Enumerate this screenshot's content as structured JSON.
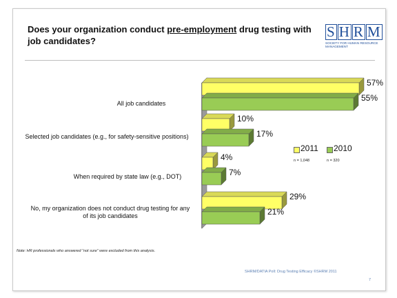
{
  "header": {
    "title_pre": "Does your organization conduct ",
    "title_u": "pre-employment",
    "title_post": " drug testing with job candidates?",
    "logo_text": "SHRM",
    "logo_sub": "Society for Human Resource Management"
  },
  "colors": {
    "series_2011": "#ffff66",
    "series_2010": "#99cc55",
    "wall": "#9a9a9a"
  },
  "chart_data": {
    "type": "bar",
    "orientation": "horizontal",
    "categories": [
      "All job candidates",
      "Selected job candidates (e.g., for safety-sensitive positions)",
      "When required by state law (e.g., DOT)",
      "No, my organization does not conduct drug testing for any of its job candidates"
    ],
    "series": [
      {
        "name": "2011",
        "values": [
          57,
          10,
          4,
          29
        ],
        "labels": [
          "57%",
          "10%",
          "4%",
          "29%"
        ],
        "n": "n = 1,048"
      },
      {
        "name": "2010",
        "values": [
          55,
          17,
          7,
          21
        ],
        "labels": [
          "55%",
          "17%",
          "7%",
          "21%"
        ],
        "n": "n = 320"
      }
    ],
    "xlim": [
      0,
      60
    ],
    "legend_position": "right"
  },
  "note": "Note: HR professionals who answered “not sure” were excluded from this analysis.",
  "footer": "SHRM/DATIA Poll: Drug Testing Efficacy ©SHRM 2011",
  "page_number": "7"
}
